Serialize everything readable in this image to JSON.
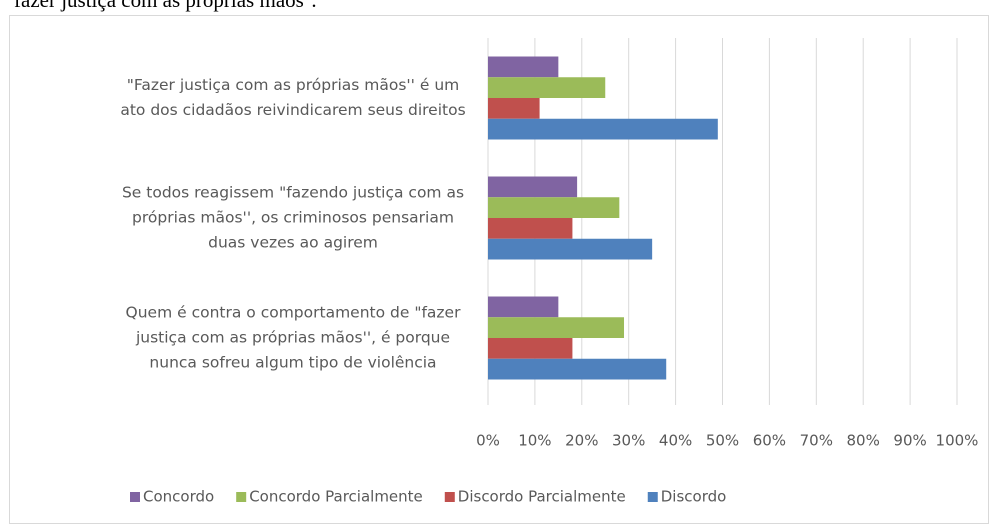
{
  "caption": "fazer justiça com as próprias mãos''.",
  "chart_data": {
    "type": "hbar",
    "categories": [
      "\"Fazer justiça com as próprias mãos'' é um ato dos cidadãos reivindicarem seus direitos",
      "Se todos reagissem \"fazendo justiça com as próprias mãos'', os criminosos pensariam duas vezes ao agirem",
      "Quem é contra o comportamento de \"fazer justiça com as próprias mãos'', é porque nunca sofreu algum tipo de violência"
    ],
    "series": [
      {
        "name": "Concordo",
        "color": "#8064a2",
        "values": [
          15,
          19,
          15
        ]
      },
      {
        "name": "Concordo Parcialmente",
        "color": "#9bbb59",
        "values": [
          25,
          28,
          29
        ]
      },
      {
        "name": "Discordo Parcialmente",
        "color": "#c0504d",
        "values": [
          11,
          18,
          18
        ]
      },
      {
        "name": "Discordo",
        "color": "#4f81bd",
        "values": [
          49,
          35,
          38
        ]
      }
    ],
    "xlim": [
      0,
      100
    ],
    "xticks": [
      {
        "value": 0,
        "label": "0%"
      },
      {
        "value": 10,
        "label": "10%"
      },
      {
        "value": 20,
        "label": "20%"
      },
      {
        "value": 30,
        "label": "30%"
      },
      {
        "value": 40,
        "label": "40%"
      },
      {
        "value": 50,
        "label": "50%"
      },
      {
        "value": 60,
        "label": "60%"
      },
      {
        "value": 70,
        "label": "70%"
      },
      {
        "value": 80,
        "label": "80%"
      },
      {
        "value": 90,
        "label": "90%"
      },
      {
        "value": 100,
        "label": "100%"
      }
    ],
    "grid": true,
    "legend": "bottom"
  }
}
